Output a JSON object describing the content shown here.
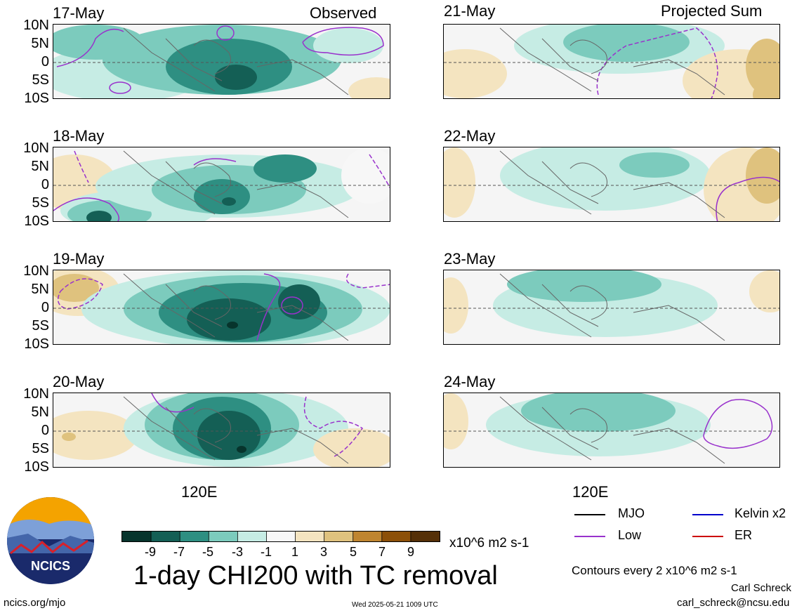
{
  "headers": {
    "left": "Observed",
    "right": "Projected Sum"
  },
  "latitude_ticks": [
    "10N",
    "5N",
    "0",
    "5S",
    "10S"
  ],
  "longitude_label": "120E",
  "panels_left": [
    {
      "date": "17-May"
    },
    {
      "date": "18-May"
    },
    {
      "date": "19-May"
    },
    {
      "date": "20-May"
    }
  ],
  "panels_right": [
    {
      "date": "21-May"
    },
    {
      "date": "22-May"
    },
    {
      "date": "23-May"
    },
    {
      "date": "24-May"
    }
  ],
  "colorbar": {
    "labels": [
      "-9",
      "-7",
      "-5",
      "-3",
      "-1",
      "1",
      "3",
      "5",
      "7",
      "9"
    ],
    "colors": [
      "#07342c",
      "#145f55",
      "#2e8f82",
      "#7ccbbd",
      "#c6ece4",
      "#f7f7f7",
      "#f4e4c0",
      "#dfc27e",
      "#bf8530",
      "#8c5009",
      "#553008"
    ],
    "units": "x10^6 m2 s-1"
  },
  "title": "1-day CHI200 with TC removal",
  "legend": {
    "items": [
      {
        "label": "MJO",
        "color": "#000000"
      },
      {
        "label": "Kelvin x2",
        "color": "#0000cc"
      },
      {
        "label": "Low",
        "color": "#9932cc"
      },
      {
        "label": "ER",
        "color": "#cc0000"
      }
    ],
    "note": "Contours every 2 x10^6 m2 s-1"
  },
  "footer": {
    "url": "ncics.org/mjo",
    "timestamp": "Wed 2025-05-21 1009 UTC",
    "author": "Carl Schreck",
    "email": "carl_schreck@ncsu.edu",
    "logo_text": "NCICS"
  }
}
